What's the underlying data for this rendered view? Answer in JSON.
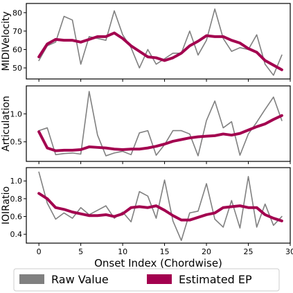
{
  "chart_data": {
    "type": "line",
    "x": [
      0,
      1,
      2,
      3,
      4,
      5,
      6,
      7,
      8,
      9,
      10,
      11,
      12,
      13,
      14,
      15,
      16,
      17,
      18,
      19,
      20,
      21,
      22,
      23,
      24,
      25,
      26,
      27,
      28,
      29
    ],
    "xlabel": "Onset Index (Chordwise)",
    "xlim": [
      -1.5,
      30
    ],
    "xticks": [
      0,
      5,
      10,
      15,
      20,
      25,
      30
    ],
    "legend": {
      "placement": "bottom",
      "entries": [
        "Raw Value",
        "Estimated EP"
      ]
    },
    "colors": {
      "raw": "#808080",
      "estimated": "#a3004f"
    },
    "grid": false,
    "panels": [
      {
        "ylabel": "MIDIVelocity",
        "ylim": [
          44,
          85
        ],
        "yticks": [
          50,
          60,
          70,
          80
        ],
        "series": [
          {
            "name": "Raw Value",
            "values": [
              54,
              62,
              64,
              78,
              76,
              52,
              67,
              66,
              65,
              81,
              68,
              61,
              50,
              60,
              52,
              55,
              58,
              58,
              70,
              57,
              65,
              82,
              66,
              59,
              61,
              60,
              68,
              52,
              46,
              57
            ]
          },
          {
            "name": "Estimated EP",
            "values": [
              56,
              63,
              65.5,
              65,
              65,
              64,
              65.5,
              67,
              67,
              69,
              66,
              62,
              59,
              56,
              55.5,
              54,
              55.5,
              58,
              62,
              64.5,
              67.5,
              67,
              67,
              65,
              63.5,
              60.5,
              58.5,
              54,
              51.5,
              49
            ]
          }
        ]
      },
      {
        "ylabel": "Articulation",
        "ylim": [
          0.15,
          1.5
        ],
        "yticks": [
          0.5,
          1.0
        ],
        "yticklabels": [
          "0.5",
          "1.0"
        ],
        "series": [
          {
            "name": "Raw Value",
            "values": [
              0.7,
              0.75,
              0.27,
              0.29,
              0.3,
              0.28,
              1.4,
              0.62,
              0.25,
              0.3,
              0.33,
              0.27,
              0.66,
              0.7,
              0.26,
              0.45,
              0.7,
              0.7,
              0.64,
              0.25,
              0.88,
              1.23,
              0.75,
              0.86,
              0.26,
              0.64,
              0.85,
              1.08,
              1.3,
              0.88
            ]
          },
          {
            "name": "Estimated EP",
            "values": [
              0.68,
              0.39,
              0.34,
              0.35,
              0.35,
              0.36,
              0.41,
              0.4,
              0.39,
              0.37,
              0.36,
              0.37,
              0.37,
              0.39,
              0.42,
              0.46,
              0.51,
              0.54,
              0.57,
              0.59,
              0.6,
              0.61,
              0.64,
              0.62,
              0.65,
              0.71,
              0.77,
              0.82,
              0.9,
              0.97
            ]
          }
        ]
      },
      {
        "ylabel": "IOIRatio",
        "ylim": [
          0.3,
          1.15
        ],
        "yticks": [
          0.4,
          0.6,
          0.8,
          1.0
        ],
        "yticklabels": [
          "0.4",
          "0.6",
          "0.8",
          "1.0"
        ],
        "series": [
          {
            "name": "Raw Value",
            "values": [
              1.1,
              0.75,
              0.57,
              0.64,
              0.58,
              0.7,
              0.62,
              0.67,
              0.72,
              0.58,
              0.65,
              0.54,
              0.88,
              0.83,
              0.58,
              1.01,
              0.55,
              0.33,
              0.64,
              0.66,
              0.97,
              0.57,
              0.48,
              0.78,
              0.47,
              1.05,
              0.48,
              0.74,
              0.5,
              0.6
            ]
          },
          {
            "name": "Estimated EP",
            "values": [
              0.86,
              0.8,
              0.7,
              0.68,
              0.65,
              0.63,
              0.61,
              0.61,
              0.62,
              0.6,
              0.63,
              0.7,
              0.71,
              0.7,
              0.72,
              0.67,
              0.61,
              0.56,
              0.56,
              0.59,
              0.62,
              0.64,
              0.7,
              0.71,
              0.72,
              0.7,
              0.7,
              0.62,
              0.58,
              0.55
            ]
          }
        ]
      }
    ]
  }
}
